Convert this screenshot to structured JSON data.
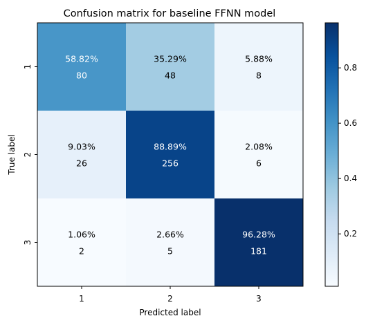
{
  "chart_data": {
    "type": "heatmap",
    "title": "Confusion matrix for baseline FFNN model",
    "xlabel": "Predicted label",
    "ylabel": "True label",
    "row_labels": [
      "1",
      "2",
      "3"
    ],
    "col_labels": [
      "1",
      "2",
      "3"
    ],
    "values": [
      [
        0.5882,
        0.3529,
        0.0588
      ],
      [
        0.0903,
        0.8889,
        0.0208
      ],
      [
        0.0106,
        0.0266,
        0.9628
      ]
    ],
    "percent_labels": [
      [
        "58.82%",
        "35.29%",
        "5.88%"
      ],
      [
        "9.03%",
        "88.89%",
        "2.08%"
      ],
      [
        "1.06%",
        "2.66%",
        "96.28%"
      ]
    ],
    "counts": [
      [
        "80",
        "48",
        "8"
      ],
      [
        "26",
        "256",
        "6"
      ],
      [
        "2",
        "5",
        "181"
      ]
    ],
    "colorbar": {
      "colormap": "Blues",
      "range": [
        0.0106,
        0.9628
      ],
      "ticks": [
        0.2,
        0.4,
        0.6,
        0.8
      ],
      "tick_labels": [
        "0.2",
        "0.4",
        "0.6",
        "0.8"
      ]
    }
  }
}
